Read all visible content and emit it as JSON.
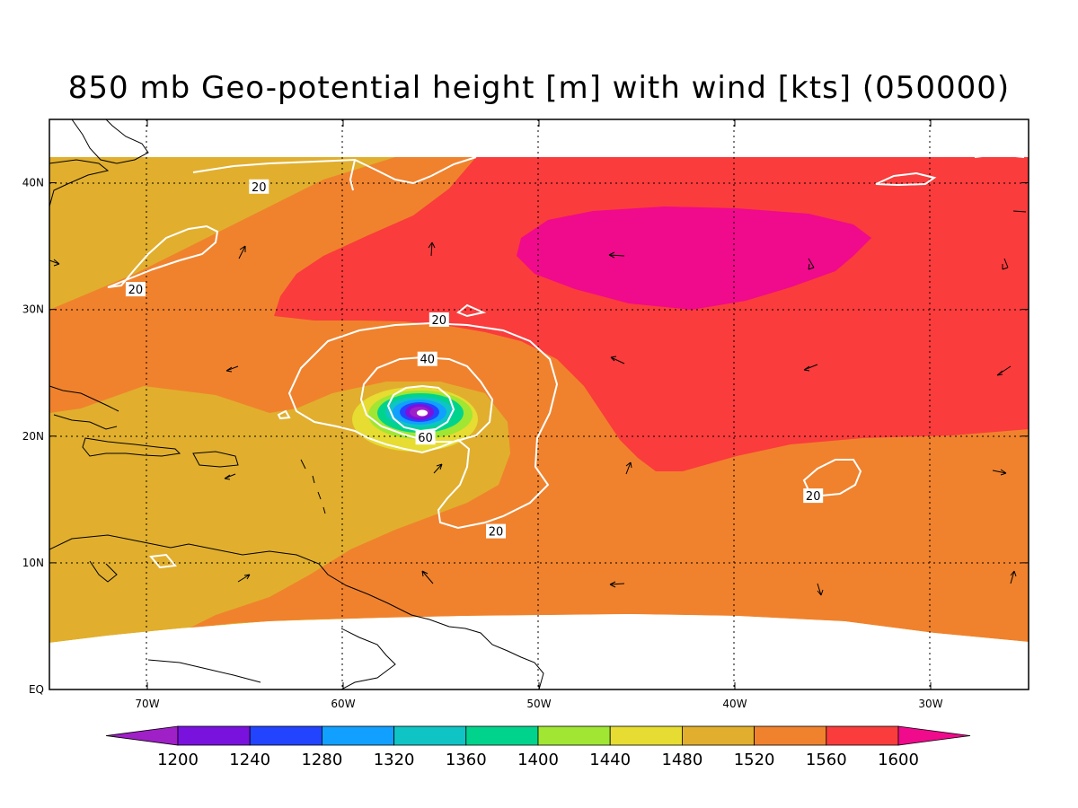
{
  "title": "850 mb Geo-potential height [m] with wind [kts] (050000)",
  "axes": {
    "x_ticks": [
      {
        "lon": -70,
        "label": "70W"
      },
      {
        "lon": -60,
        "label": "60W"
      },
      {
        "lon": -50,
        "label": "50W"
      },
      {
        "lon": -40,
        "label": "40W"
      },
      {
        "lon": -30,
        "label": "30W"
      }
    ],
    "y_ticks": [
      {
        "lat": 0,
        "label": "EQ"
      },
      {
        "lat": 10,
        "label": "10N"
      },
      {
        "lat": 20,
        "label": "20N"
      },
      {
        "lat": 30,
        "label": "30N"
      },
      {
        "lat": 40,
        "label": "40N"
      }
    ],
    "lon_range": [
      -75,
      -25
    ],
    "lat_range": [
      0,
      45
    ],
    "grid": true
  },
  "colorbar": {
    "levels": [
      "1200",
      "1240",
      "1280",
      "1320",
      "1360",
      "1400",
      "1440",
      "1480",
      "1520",
      "1560",
      "1600"
    ],
    "colors": [
      "#a020c8",
      "#7a12de",
      "#2244ff",
      "#11a0ff",
      "#0ec4c4",
      "#00d48c",
      "#a0e632",
      "#e6dc32",
      "#e1af2d",
      "#f0822d",
      "#fa3c3c",
      "#f00a8c"
    ]
  },
  "wind_contours": [
    {
      "label": "20",
      "lon": -64.3,
      "lat": 39.7
    },
    {
      "label": "20",
      "lon": -70.6,
      "lat": 31.6
    },
    {
      "label": "20",
      "lon": -55.1,
      "lat": 29.2
    },
    {
      "label": "40",
      "lon": -55.7,
      "lat": 26.1
    },
    {
      "label": "60",
      "lon": -55.8,
      "lat": 19.9
    },
    {
      "label": "20",
      "lon": -52.2,
      "lat": 12.5
    },
    {
      "label": "20",
      "lon": -36.0,
      "lat": 15.3
    }
  ],
  "chart_data": {
    "type": "heatmap",
    "title": "850 mb Geo-potential height [m] with wind [kts] (050000)",
    "variable": "850 mb geopotential height [m]",
    "overlay": "wind speed contours [kts] with wind vectors",
    "valid_time": "050000",
    "lon_range": [
      -75,
      -25
    ],
    "lat_range": [
      0,
      45
    ],
    "color_levels": [
      1200,
      1240,
      1280,
      1320,
      1360,
      1400,
      1440,
      1480,
      1520,
      1560,
      1600
    ],
    "wind_contour_levels": [
      20,
      40,
      60
    ],
    "features": {
      "cyclone_center": {
        "lon": -56.3,
        "lat": 22,
        "min_height_band": "<1200"
      },
      "high_center": {
        "lon": -43,
        "lat": 35,
        "height_band": ">1600"
      }
    },
    "grid": true
  }
}
